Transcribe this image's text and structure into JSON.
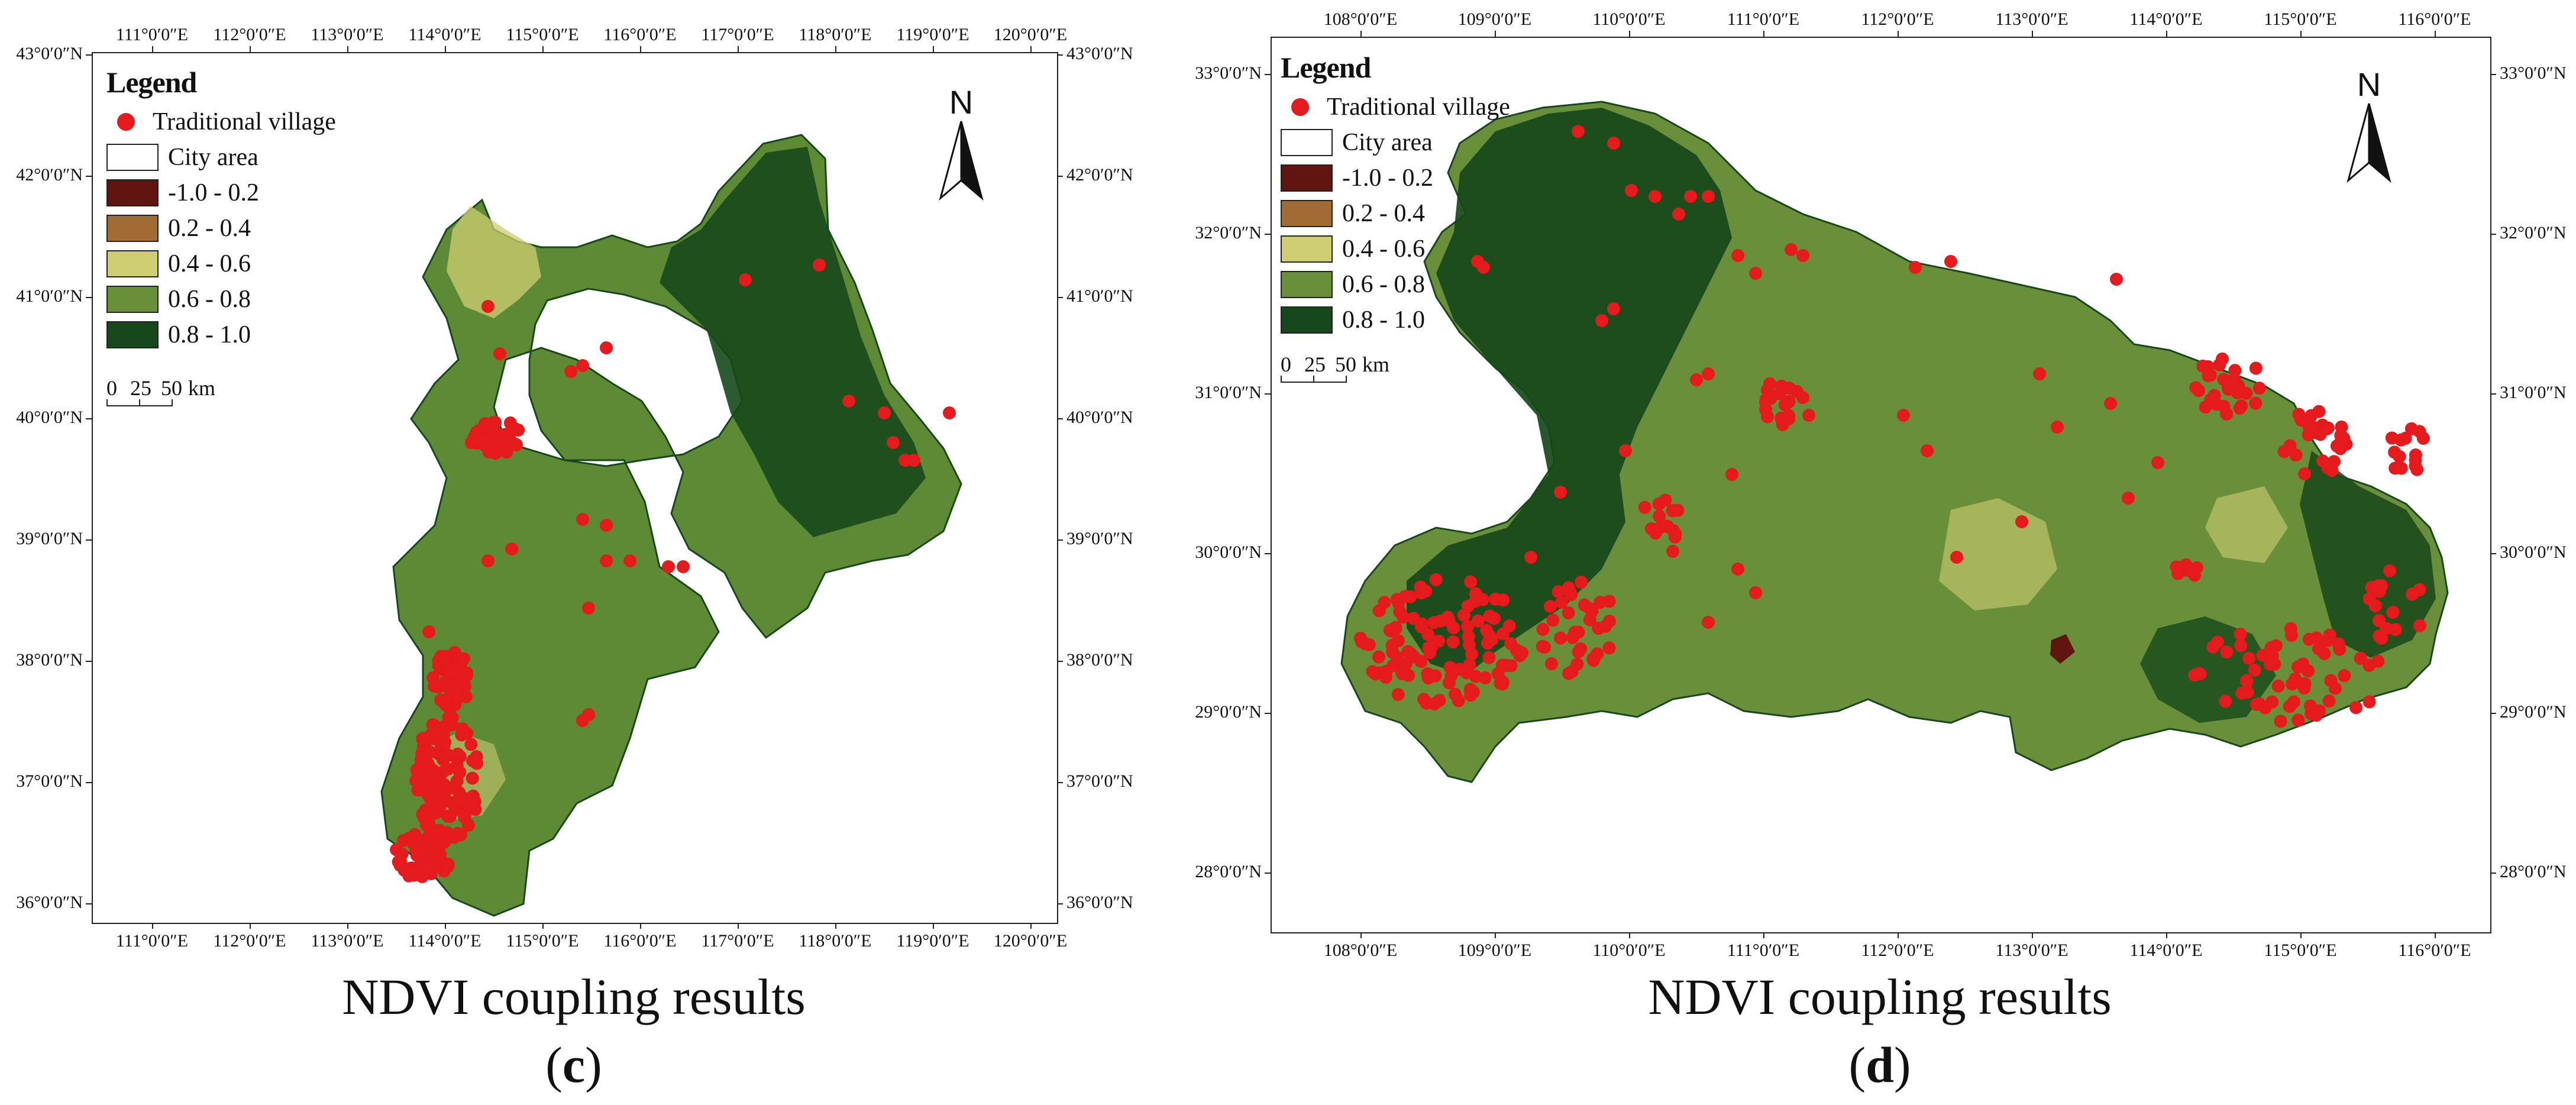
{
  "colors": {
    "village": "#e41a1c",
    "city_area": "#ffffff",
    "class_1": "#5f1410",
    "class_2": "#a06b35",
    "class_3": "#cfce72",
    "class_4": "#6a8f3b",
    "class_5": "#17481b"
  },
  "legend": {
    "title": "Legend",
    "items": [
      {
        "label": "Traditional village",
        "kind": "dot",
        "color": "#e41a1c"
      },
      {
        "label": "City area",
        "kind": "swatch",
        "color": "#ffffff"
      },
      {
        "label": "-1.0 - 0.2",
        "kind": "swatch",
        "color": "#5f1410"
      },
      {
        "label": "0.2 - 0.4",
        "kind": "swatch",
        "color": "#a06b35"
      },
      {
        "label": "0.4 - 0.6",
        "kind": "swatch",
        "color": "#cfce72"
      },
      {
        "label": "0.6 - 0.8",
        "kind": "swatch",
        "color": "#6a8f3b"
      },
      {
        "label": "0.8 - 1.0",
        "kind": "swatch",
        "color": "#17481b"
      }
    ]
  },
  "north_arrow": {
    "label": "N",
    "icon": "north-arrow-icon"
  },
  "panel_c": {
    "title": "NDVI coupling results",
    "label_open": "(",
    "label_letter": "c",
    "label_close": ")",
    "scalebar": {
      "labels": [
        "0",
        "25",
        "50"
      ],
      "unit": "km"
    },
    "lon_ticks": [
      "111°0′0″E",
      "112°0′0″E",
      "113°0′0″E",
      "114°0′0″E",
      "115°0′0″E",
      "116°0′0″E",
      "117°0′0″E",
      "118°0′0″E",
      "119°0′0″E",
      "120°0′0″E"
    ],
    "lat_ticks": [
      "43°0′0″N",
      "42°0′0″N",
      "41°0′0″N",
      "40°0′0″N",
      "39°0′0″N",
      "38°0′0″N",
      "37°0′0″N",
      "36°0′0″N"
    ]
  },
  "panel_d": {
    "title": "NDVI coupling results",
    "label_open": "(",
    "label_letter": "d",
    "label_close": ")",
    "scalebar": {
      "labels": [
        "0",
        "25",
        "50"
      ],
      "unit": "km"
    },
    "lon_ticks": [
      "108°0′0″E",
      "109°0′0″E",
      "110°0′0″E",
      "111°0′0″E",
      "112°0′0″E",
      "113°0′0″E",
      "114°0′0″E",
      "115°0′0″E",
      "116°0′0″E"
    ],
    "lat_ticks": [
      "33°0′0″N",
      "32°0′0″N",
      "31°0′0″N",
      "30°0′0″N",
      "29°0′0″N",
      "28°0′0″N"
    ]
  }
}
